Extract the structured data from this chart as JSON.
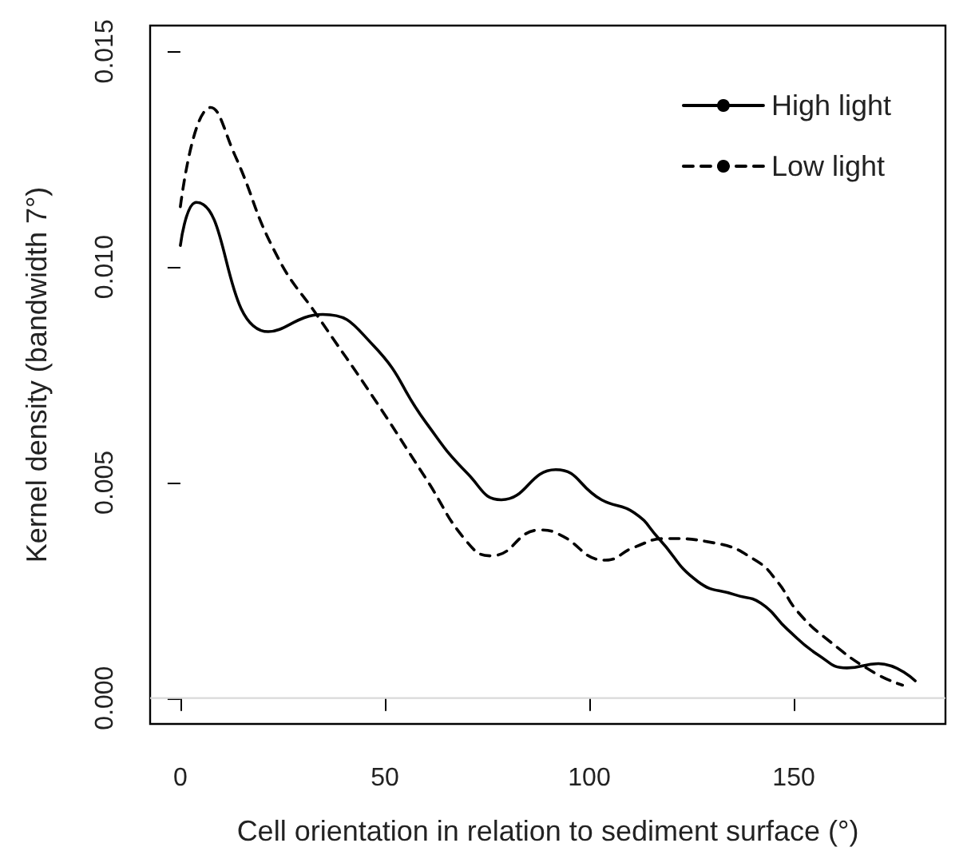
{
  "chart_data": {
    "type": "line",
    "xlabel": "Cell orientation in relation to sediment surface (°)",
    "ylabel": "Kernel density (bandwidth 7°)",
    "xlim": [
      -7.4,
      187.1
    ],
    "xticks": [
      0,
      50,
      100,
      150
    ],
    "ylim": [
      -0.0006,
      0.0156
    ],
    "yticks": [
      {
        "value": 0,
        "label": "0.000"
      },
      {
        "value": 0.005,
        "label": "0.005"
      },
      {
        "value": 0.01,
        "label": "0.010"
      },
      {
        "value": 0.015,
        "label": "0.015"
      }
    ],
    "grid": false,
    "legend": "top right",
    "marker": "none",
    "ref_lines": [
      {
        "axis": "y",
        "value": 0,
        "label": null,
        "color": "#d9d9d9"
      }
    ],
    "series": [
      {
        "name": "High light",
        "color": "#000000",
        "line_style": "solid",
        "x": [
          0,
          3.9,
          21.5,
          34.8,
          47,
          60,
          70.3,
          78.5,
          91.8,
          103,
          111,
          117,
          126.6,
          135.5,
          142,
          148.4,
          156,
          163,
          170.7,
          179.7
        ],
        "values": [
          0.0105,
          0.0115,
          0.0085,
          0.0089,
          0.0082,
          0.0064,
          0.0052,
          0.0046,
          0.0053,
          0.0046,
          0.0043,
          0.0037,
          0.0027,
          0.0024,
          0.0022,
          0.0016,
          0.001,
          0.0007,
          0.0008,
          0.0004
        ]
      },
      {
        "name": "Low light",
        "color": "#000000",
        "line_style": "dashed",
        "x": [
          0,
          7.4,
          13.3,
          23.4,
          34,
          47,
          60,
          70.3,
          76,
          88,
          92.6,
          104,
          111,
          118.8,
          130.5,
          140.6,
          146,
          151,
          159,
          169.5,
          176.6
        ],
        "values": [
          0.0114,
          0.0137,
          0.0126,
          0.0103,
          0.0088,
          0.007,
          0.0051,
          0.0036,
          0.0033,
          0.0039,
          0.0038,
          0.0032,
          0.0035,
          0.0037,
          0.0036,
          0.0032,
          0.0027,
          0.002,
          0.0013,
          0.0006,
          0.0003
        ]
      }
    ]
  }
}
